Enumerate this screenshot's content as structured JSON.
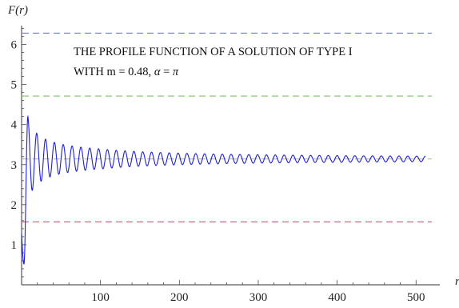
{
  "chart_data": {
    "type": "line",
    "title": "",
    "ylabel": "F(r)",
    "xlabel": "r",
    "xlim": [
      0,
      520
    ],
    "ylim": [
      0,
      6.55
    ],
    "xticks": [
      100,
      200,
      300,
      400,
      500
    ],
    "yticks": [
      1,
      2,
      3,
      4,
      5,
      6
    ],
    "annotation": {
      "line1": "THE PROFILE FUNCTION OF A SOLUTION OF TYPE I",
      "line2_prefix": "WITH m = 0.48, ",
      "line2_alpha": "α",
      "line2_eq": " = ",
      "line2_pi": "π"
    },
    "reference_lines": [
      {
        "y": 6.283,
        "color": "#5b6fb5"
      },
      {
        "y": 4.712,
        "color": "#7dc06a"
      },
      {
        "y": 3.1416,
        "color": "#b6b6b6"
      },
      {
        "y": 1.5708,
        "color": "#c7576f"
      }
    ],
    "series": [
      {
        "color": "#1f1fd6",
        "curve": {
          "r_start": 0,
          "r_end": 512,
          "center": 3.1416,
          "oscillation_period": 11.2,
          "first_max": {
            "r": 8,
            "F": 4.2
          },
          "first_min": {
            "r": 3,
            "F": 0.52
          },
          "amplitude_at_r100": 0.25,
          "amplitude_at_r500": 0.07
        }
      }
    ]
  }
}
